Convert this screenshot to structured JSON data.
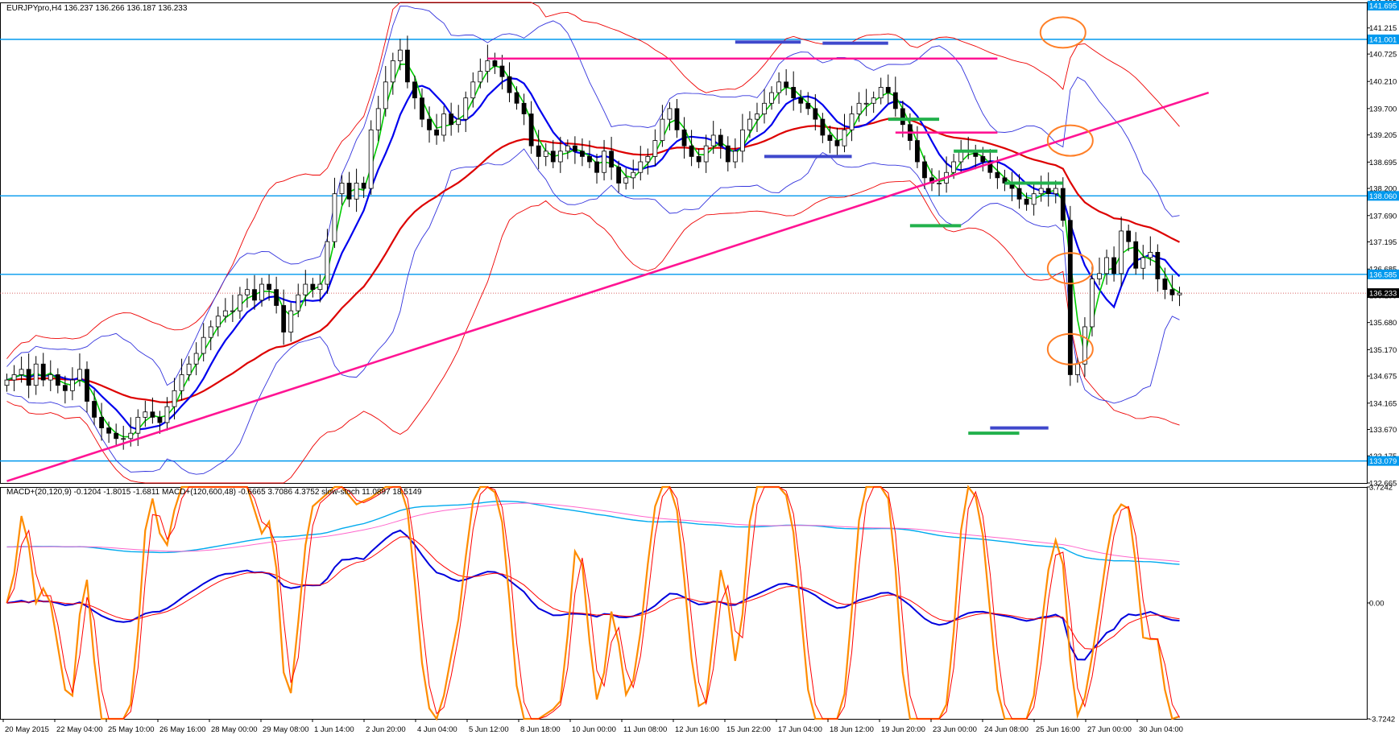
{
  "window": {
    "symbol_header": "EURJPYpro,H4  136.237 136.266 136.187 136.233"
  },
  "indicator_header": "MACD+(20,120,9) -0.1204 -1.8015 -1.6811   MACD+(120,600,48) -0.6665 3.7086 4.3752   slow-stoch 11.0897 18.5149",
  "colors": {
    "background": "#ffffff",
    "frame": "#000000",
    "bull_candle": "#ffffff",
    "bear_candle": "#000000",
    "ma_fast": "#00cc00",
    "ma_mid": "#0000ee",
    "ma_slow": "#dd0000",
    "bollinger": "#3333dd",
    "envelope": "#ee0000",
    "horizontal_level": "#0099ee",
    "trendline": "#ff1493",
    "zone_blue": "#3f48cc",
    "zone_green": "#22b14c",
    "circle_marker": "#ff7f27",
    "stoch_main": "#ff8c00",
    "stoch_signal": "#ff0000",
    "macd_main": "#0000dd",
    "macd_signal": "#ff0000",
    "macd2_main": "#00aaee",
    "macd2_signal": "#ff66cc",
    "current_price_label_bg": "#000000"
  },
  "chart_data": [
    {
      "type": "candlestick",
      "panel": "price",
      "title": "EURJPYpro,H4",
      "ohlc_last": {
        "open": 136.237,
        "high": 136.266,
        "low": 136.187,
        "close": 136.233
      },
      "y_range": [
        132.665,
        141.695
      ],
      "y_ticks": [
        "141.695",
        "141.215",
        "140.725",
        "140.210",
        "139.700",
        "139.205",
        "138.695",
        "138.200",
        "137.690",
        "137.195",
        "136.685",
        "136.190",
        "135.680",
        "135.170",
        "134.675",
        "134.165",
        "133.670",
        "133.175",
        "132.665"
      ],
      "x_labels": [
        "20 May 2015",
        "22 May 04:00",
        "25 May 10:00",
        "26 May 16:00",
        "28 May 00:00",
        "29 May 08:00",
        "1 Jun 14:00",
        "2 Jun 20:00",
        "4 Jun 04:00",
        "5 Jun 12:00",
        "8 Jun 18:00",
        "10 Jun 00:00",
        "11 Jun 08:00",
        "12 Jun 16:00",
        "15 Jun 22:00",
        "17 Jun 04:00",
        "18 Jun 12:00",
        "19 Jun 20:00",
        "23 Jun 00:00",
        "24 Jun 08:00",
        "25 Jun 16:00",
        "27 Jun 00:00",
        "30 Jun 04:00"
      ],
      "horizontal_levels": [
        {
          "value": 141.001,
          "label": "141.001"
        },
        {
          "value": 138.06,
          "label": "138.060"
        },
        {
          "value": 136.585,
          "label": "136.585"
        },
        {
          "value": 133.079,
          "label": "133.079"
        }
      ],
      "current_price": {
        "value": 136.233,
        "label": "136.233"
      },
      "top_level_label": "141.695",
      "close_series": [
        134.6,
        134.7,
        134.8,
        134.5,
        134.9,
        134.6,
        134.7,
        134.5,
        134.4,
        134.6,
        134.8,
        134.2,
        133.9,
        133.7,
        133.6,
        133.5,
        133.5,
        133.6,
        133.9,
        134.0,
        133.9,
        133.8,
        134.1,
        134.4,
        134.7,
        134.9,
        135.1,
        135.4,
        135.6,
        135.8,
        135.9,
        135.9,
        136.2,
        136.3,
        136.1,
        136.4,
        136.3,
        136.0,
        135.5,
        135.9,
        136.2,
        136.4,
        136.3,
        136.4,
        137.2,
        138.1,
        138.3,
        138.0,
        138.3,
        138.2,
        139.3,
        139.7,
        140.2,
        140.6,
        140.8,
        140.2,
        139.9,
        139.5,
        139.3,
        139.2,
        139.6,
        139.4,
        139.5,
        139.9,
        140.2,
        140.4,
        140.6,
        140.5,
        140.3,
        140.0,
        139.8,
        139.6,
        139.0,
        138.8,
        138.9,
        138.7,
        138.9,
        139.0,
        138.9,
        138.8,
        138.7,
        138.5,
        138.9,
        138.6,
        138.3,
        138.4,
        138.5,
        138.7,
        138.8,
        139.1,
        139.5,
        139.7,
        139.3,
        139.0,
        138.8,
        138.7,
        139.0,
        139.2,
        139.0,
        138.7,
        138.9,
        139.3,
        139.5,
        139.6,
        139.8,
        140.0,
        140.2,
        140.1,
        139.9,
        139.8,
        139.7,
        139.5,
        139.2,
        139.1,
        139.0,
        139.3,
        139.6,
        139.8,
        139.8,
        139.9,
        140.1,
        140.0,
        139.7,
        139.4,
        139.1,
        138.7,
        138.4,
        138.3,
        138.3,
        138.5,
        138.7,
        138.9,
        138.9,
        138.8,
        138.7,
        138.5,
        138.4,
        138.3,
        138.2,
        138.0,
        137.9,
        138.1,
        138.2,
        138.1,
        138.2,
        137.6,
        134.7,
        134.9,
        135.6,
        136.5,
        136.6,
        136.9,
        136.6,
        137.4,
        137.2,
        136.7,
        136.9,
        137.0,
        136.5,
        136.3,
        136.2,
        136.233
      ],
      "series": [
        {
          "name": "MA fast",
          "style": "ma_fast"
        },
        {
          "name": "MA mid",
          "style": "ma_mid"
        },
        {
          "name": "MA slow",
          "style": "ma_slow"
        },
        {
          "name": "Bollinger upper",
          "style": "bollinger"
        },
        {
          "name": "Bollinger lower",
          "style": "bollinger"
        },
        {
          "name": "Envelope upper",
          "style": "envelope"
        },
        {
          "name": "Envelope lower",
          "style": "envelope"
        }
      ],
      "trendlines": [
        {
          "from": [
            0,
            132.7
          ],
          "to": [
            165,
            140.0
          ],
          "style": "trendline"
        },
        {
          "from": [
            66,
            140.64
          ],
          "to": [
            136,
            140.64
          ],
          "style": "trendline"
        },
        {
          "from": [
            122,
            139.25
          ],
          "to": [
            136,
            139.25
          ],
          "style": "trendline"
        }
      ],
      "zones": [
        {
          "color": "zone_blue",
          "x": [
            100,
            109
          ],
          "y": 140.95
        },
        {
          "color": "zone_blue",
          "x": [
            112,
            121
          ],
          "y": 140.93
        },
        {
          "color": "zone_blue",
          "x": [
            104,
            116
          ],
          "y": 138.8
        },
        {
          "color": "zone_green",
          "x": [
            121,
            128
          ],
          "y": 139.5
        },
        {
          "color": "zone_green",
          "x": [
            130,
            136
          ],
          "y": 138.9
        },
        {
          "color": "zone_green",
          "x": [
            137,
            145
          ],
          "y": 138.3
        },
        {
          "color": "zone_green",
          "x": [
            124,
            131
          ],
          "y": 137.5
        },
        {
          "color": "zone_blue",
          "x": [
            135,
            143
          ],
          "y": 133.7
        },
        {
          "color": "zone_green",
          "x": [
            132,
            139
          ],
          "y": 133.6
        }
      ],
      "circle_markers": [
        {
          "x": 145,
          "y": 141.13
        },
        {
          "x": 146,
          "y": 139.1
        },
        {
          "x": 146,
          "y": 136.7
        },
        {
          "x": 146,
          "y": 135.18
        }
      ]
    },
    {
      "type": "line",
      "panel": "indicator",
      "title": "MACD+(20,120,9) / MACD+(120,600,48) / slow-stoch",
      "y_range": [
        -3.7242,
        3.7242
      ],
      "y_ticks": [
        "3.7242",
        "0.00",
        "-3.7242"
      ],
      "series": [
        {
          "name": "slow-stoch",
          "style": "stoch_main",
          "last": 11.0897
        },
        {
          "name": "slow-stoch signal",
          "style": "stoch_signal",
          "last": 18.5149
        },
        {
          "name": "MACD+(20,120,9) main",
          "style": "macd_main",
          "last": -1.8015
        },
        {
          "name": "MACD+(20,120,9) signal",
          "style": "macd_signal",
          "last": -1.6811
        },
        {
          "name": "MACD+(120,600,48) main",
          "style": "macd2_main",
          "last": 3.7086
        },
        {
          "name": "MACD+(120,600,48) signal",
          "style": "macd2_signal",
          "last": 4.3752
        }
      ]
    }
  ]
}
